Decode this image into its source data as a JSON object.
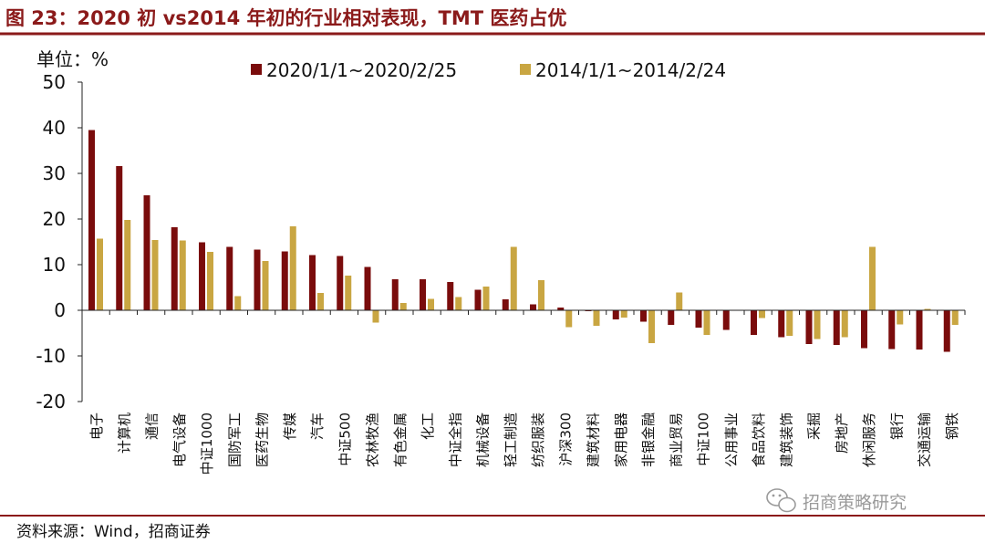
{
  "colors": {
    "title": "#8B1A1A",
    "series_2020": "#7A0C0C",
    "series_2014": "#C9A642",
    "rule": "#8B1A1A",
    "watermark": "#9a9a9a"
  },
  "header": {
    "title": "图 23：2020 初 vs2014 年初的行业相对表现，TMT 医药占优"
  },
  "footer": {
    "source": "资料来源：Wind，招商证券",
    "watermark_text": "招商策略研究",
    "watermark_icon": "wechat-icon"
  },
  "chart_data": {
    "type": "bar",
    "title": "",
    "unit_label": "单位：%",
    "ylim": [
      -20,
      50
    ],
    "yticks": [
      "50",
      "40",
      "30",
      "20",
      "10",
      "0",
      "-10",
      "-20"
    ],
    "ytick_values": [
      50,
      40,
      30,
      20,
      10,
      0,
      -10,
      -20
    ],
    "legend_position": "top",
    "categories": [
      "电子",
      "计算机",
      "通信",
      "电气设备",
      "中证1000",
      "国防军工",
      "医药生物",
      "传媒",
      "汽车",
      "中证500",
      "农林牧渔",
      "有色金属",
      "化工",
      "中证全指",
      "机械设备",
      "轻工制造",
      "纺织服装",
      "沪深300",
      "建筑材料",
      "家用电器",
      "非银金融",
      "商业贸易",
      "中证100",
      "公用事业",
      "食品饮料",
      "建筑装饰",
      "采掘",
      "房地产",
      "休闲服务",
      "银行",
      "交通运输",
      "钢铁"
    ],
    "series": [
      {
        "name": "2020/1/1~2020/2/25",
        "values": [
          39.5,
          31.6,
          25.2,
          18.2,
          14.9,
          13.9,
          13.3,
          12.9,
          12.1,
          11.9,
          9.5,
          6.8,
          6.8,
          6.2,
          4.5,
          2.4,
          1.3,
          0.6,
          -0.2,
          -2.0,
          -2.5,
          -3.2,
          -3.8,
          -4.3,
          -5.4,
          -5.9,
          -7.4,
          -7.6,
          -8.3,
          -8.5,
          -8.6,
          -9.1
        ]
      },
      {
        "name": "2014/1/1~2014/2/24",
        "values": [
          15.7,
          19.8,
          15.4,
          15.3,
          12.8,
          3.1,
          10.8,
          18.4,
          3.8,
          7.6,
          -2.7,
          1.6,
          2.5,
          2.9,
          5.2,
          13.9,
          6.6,
          -3.7,
          -3.4,
          -1.6,
          -7.2,
          3.9,
          -5.4,
          -0.1,
          -1.7,
          -5.6,
          -6.3,
          -5.9,
          13.9,
          -3.1,
          0.3,
          -3.2
        ]
      }
    ]
  }
}
